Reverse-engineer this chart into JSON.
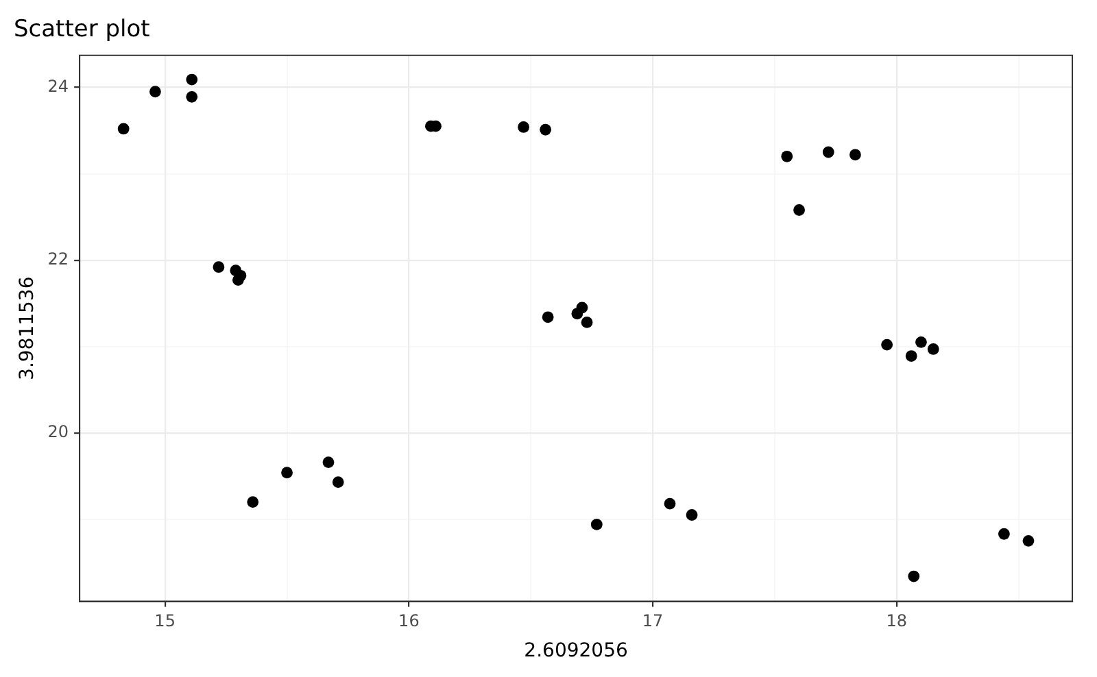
{
  "chart_data": {
    "type": "scatter",
    "title": "Scatter plot",
    "xlabel": "2.6092056",
    "ylabel": "3.9811536",
    "x": [
      14.83,
      14.96,
      15.11,
      15.11,
      15.22,
      15.29,
      15.31,
      15.3,
      15.36,
      15.5,
      15.67,
      15.71,
      16.09,
      16.11,
      16.47,
      16.56,
      16.57,
      16.69,
      16.71,
      16.73,
      16.77,
      17.07,
      17.16,
      17.55,
      17.6,
      17.72,
      17.83,
      17.96,
      18.06,
      18.1,
      18.15,
      18.07,
      18.44,
      18.54
    ],
    "series": [
      {
        "color": "#000000",
        "values": [
          23.52,
          23.95,
          24.09,
          23.89,
          21.92,
          21.88,
          21.82,
          21.77,
          19.2,
          19.54,
          19.66,
          19.43,
          23.55,
          23.55,
          23.54,
          23.51,
          21.34,
          21.38,
          21.45,
          21.28,
          18.94,
          19.18,
          19.05,
          23.2,
          22.58,
          23.25,
          23.22,
          21.02,
          20.89,
          21.05,
          20.97,
          18.34,
          18.83,
          18.75
        ]
      }
    ],
    "xlim": [
      14.65,
      18.72
    ],
    "ylim": [
      18.05,
      24.37
    ],
    "xticks": [
      15,
      {
        "value": 15.5,
        "label": null
      },
      16,
      {
        "value": 16.5,
        "label": null
      },
      17,
      {
        "value": 17.5,
        "label": null
      },
      18,
      {
        "value": 18.5,
        "label": null
      }
    ],
    "yticks": [
      {
        "value": 19,
        "label": null
      },
      20,
      {
        "value": 21,
        "label": null
      },
      22,
      {
        "value": 23,
        "label": null
      },
      24
    ],
    "grid": true,
    "marker": "circle",
    "legend": false
  }
}
